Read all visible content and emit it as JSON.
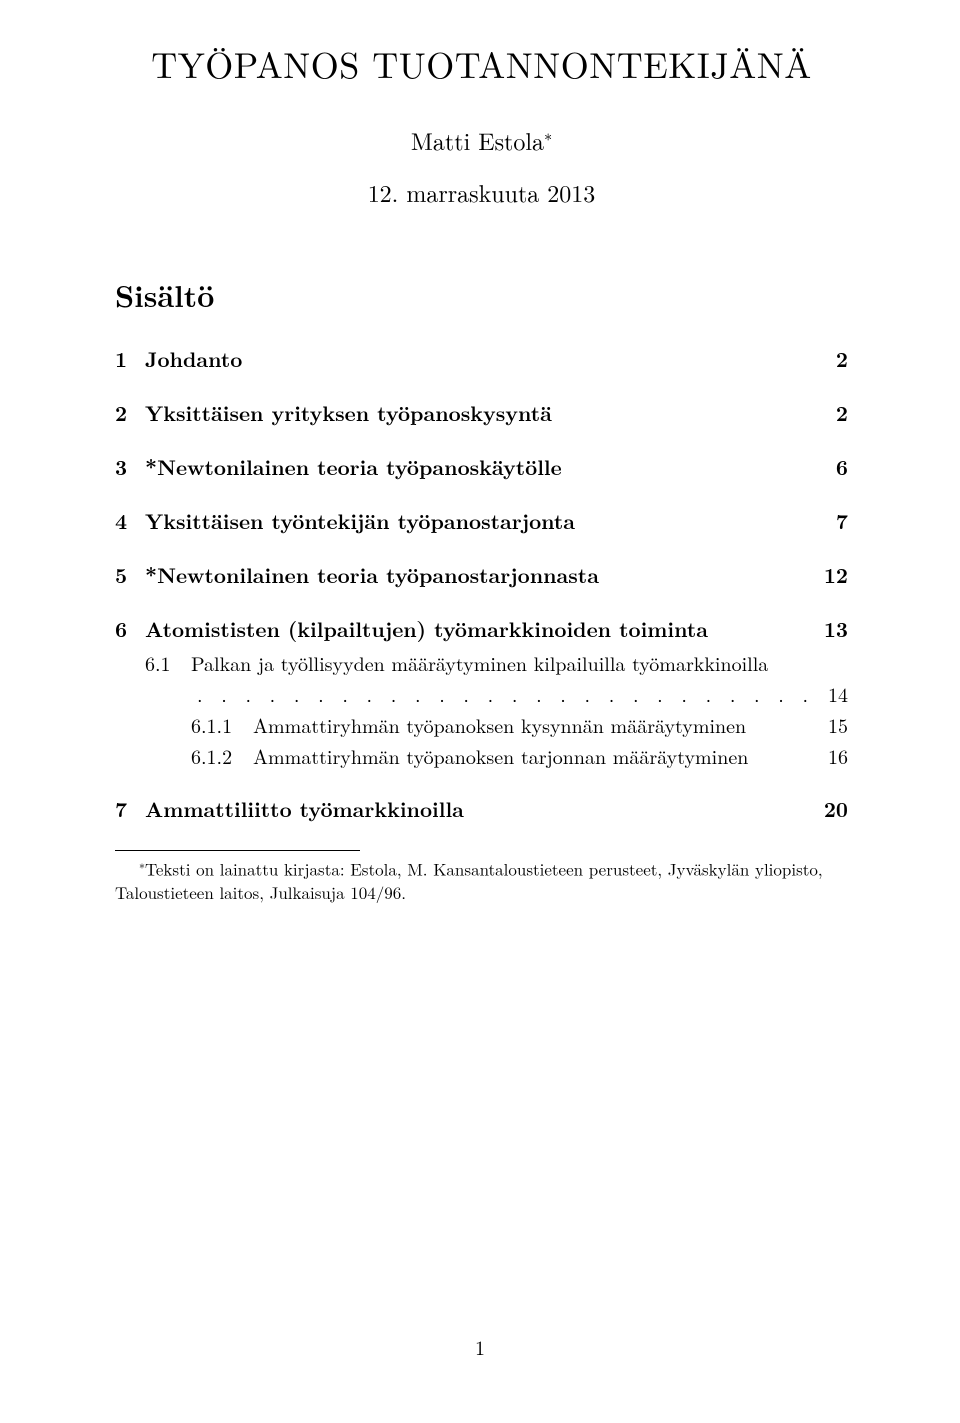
{
  "title": "TYÖPANOS TUOTANNONTEKIJÄNÄ",
  "author": "Matti Estola",
  "author_mark": "∗",
  "date": "12. marraskuuta 2013",
  "toc_heading": "Sisältö",
  "toc": [
    {
      "num": "1",
      "label": "Johdanto",
      "page": "2"
    },
    {
      "num": "2",
      "label": "Yksittäisen yrityksen työpanoskysyntä",
      "page": "2"
    },
    {
      "num": "3",
      "label": "*Newtonilainen teoria työpanoskäytölle",
      "page": "6"
    },
    {
      "num": "4",
      "label": "Yksittäisen työntekijän työpanostarjonta",
      "page": "7"
    },
    {
      "num": "5",
      "label": "*Newtonilainen teoria työpanostarjonnasta",
      "page": "12"
    },
    {
      "num": "6",
      "label": "Atomististen (kilpailtujen) työmarkkinoiden toiminta",
      "page": "13"
    },
    {
      "num": "7",
      "label": "Ammattiliitto työmarkkinoilla",
      "page": "20"
    }
  ],
  "sub6_1": {
    "num": "6.1",
    "label": "Palkan ja työllisyyden määräytyminen kilpailuilla työmarkkinoilla",
    "page": "14"
  },
  "sub611": {
    "num": "6.1.1",
    "label": "Ammattiryhmän työpanoksen kysynnän määräytyminen",
    "page": "15"
  },
  "sub612": {
    "num": "6.1.2",
    "label": "Ammattiryhmän työpanoksen tarjonnan määräytyminen",
    "page": "16"
  },
  "leaders": ". . . . . . . . . . . . . . . . . . . . . . . . . . . . . . . . . . . . . . . . . . . . . . . .",
  "footnote_mark": "∗",
  "footnote": "Teksti on lainattu kirjasta: Estola, M. Kansantaloustieteen perusteet, Jyväskylän yliopisto, Taloustieteen laitos, Julkaisuja 104/96.",
  "page_number": "1"
}
